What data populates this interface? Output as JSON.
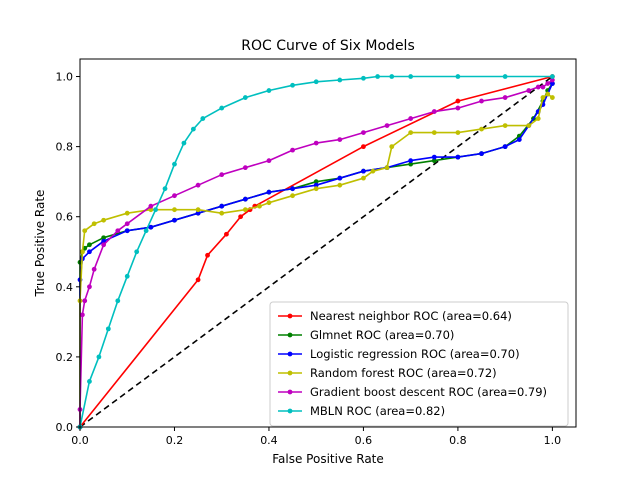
{
  "chart_data": {
    "type": "line",
    "title": "ROC Curve of Six Models",
    "xlabel": "False Positive Rate",
    "ylabel": "True Positive Rate",
    "xlim": [
      0.0,
      1.05
    ],
    "ylim": [
      0.0,
      1.05
    ],
    "xticks": [
      "0.0",
      "0.2",
      "0.4",
      "0.6",
      "0.8",
      "1.0"
    ],
    "yticks": [
      "0.0",
      "0.2",
      "0.4",
      "0.6",
      "0.8",
      "1.0"
    ],
    "grid": false,
    "legend_position": "lower-right",
    "reference_line": {
      "x": [
        0,
        1
      ],
      "y": [
        0,
        1
      ],
      "color": "#000000",
      "style": "dashed"
    },
    "series": [
      {
        "name": "Nearest neighbor ROC (area=0.64)",
        "color": "#ff0000",
        "x": [
          0,
          0.25,
          0.27,
          0.31,
          0.34,
          0.36,
          0.37,
          0.6,
          0.8,
          1.0
        ],
        "y": [
          0,
          0.42,
          0.49,
          0.55,
          0.6,
          0.62,
          0.63,
          0.8,
          0.93,
          1.0
        ]
      },
      {
        "name": "Glmnet ROC (area=0.70)",
        "color": "#008000",
        "x": [
          0,
          0.0,
          0.005,
          0.01,
          0.02,
          0.05,
          0.1,
          0.15,
          0.2,
          0.25,
          0.3,
          0.35,
          0.4,
          0.45,
          0.5,
          0.55,
          0.6,
          0.65,
          0.7,
          0.75,
          0.8,
          0.85,
          0.9,
          0.93,
          0.96,
          0.98,
          0.99,
          1.0
        ],
        "y": [
          0,
          0.47,
          0.5,
          0.51,
          0.52,
          0.54,
          0.56,
          0.57,
          0.59,
          0.61,
          0.63,
          0.65,
          0.67,
          0.68,
          0.7,
          0.71,
          0.73,
          0.74,
          0.75,
          0.76,
          0.77,
          0.78,
          0.8,
          0.83,
          0.88,
          0.93,
          0.96,
          0.98
        ]
      },
      {
        "name": "Logistic regression ROC (area=0.70)",
        "color": "#0000ff",
        "x": [
          0,
          0.0,
          0.005,
          0.02,
          0.05,
          0.1,
          0.15,
          0.2,
          0.25,
          0.3,
          0.35,
          0.4,
          0.45,
          0.5,
          0.55,
          0.6,
          0.65,
          0.7,
          0.75,
          0.8,
          0.85,
          0.9,
          0.93,
          0.95,
          0.97,
          0.98,
          0.99,
          1.0
        ],
        "y": [
          0,
          0.42,
          0.48,
          0.5,
          0.53,
          0.56,
          0.57,
          0.59,
          0.61,
          0.63,
          0.65,
          0.67,
          0.68,
          0.69,
          0.71,
          0.73,
          0.74,
          0.76,
          0.77,
          0.77,
          0.78,
          0.8,
          0.82,
          0.86,
          0.9,
          0.92,
          0.95,
          0.98
        ]
      },
      {
        "name": "Random forest ROC (area=0.72)",
        "color": "#bfbf00",
        "x": [
          0,
          0.0,
          0.005,
          0.01,
          0.03,
          0.05,
          0.1,
          0.15,
          0.2,
          0.25,
          0.3,
          0.35,
          0.38,
          0.4,
          0.45,
          0.5,
          0.55,
          0.6,
          0.62,
          0.65,
          0.66,
          0.7,
          0.75,
          0.8,
          0.85,
          0.9,
          0.95,
          0.97,
          0.98,
          0.99,
          1.0
        ],
        "y": [
          0,
          0.36,
          0.5,
          0.56,
          0.58,
          0.59,
          0.61,
          0.62,
          0.62,
          0.62,
          0.61,
          0.62,
          0.63,
          0.64,
          0.66,
          0.68,
          0.69,
          0.71,
          0.73,
          0.74,
          0.8,
          0.84,
          0.84,
          0.84,
          0.85,
          0.86,
          0.86,
          0.88,
          0.94,
          0.95,
          0.94
        ]
      },
      {
        "name": "Gradient boost descent ROC (area=0.79)",
        "color": "#bf00bf",
        "x": [
          0,
          0.0,
          0.005,
          0.01,
          0.02,
          0.03,
          0.05,
          0.08,
          0.1,
          0.15,
          0.2,
          0.25,
          0.3,
          0.35,
          0.4,
          0.45,
          0.5,
          0.55,
          0.6,
          0.65,
          0.7,
          0.75,
          0.8,
          0.85,
          0.9,
          0.95,
          0.97,
          0.98,
          0.99,
          1.0
        ],
        "y": [
          0,
          0.05,
          0.32,
          0.36,
          0.4,
          0.45,
          0.52,
          0.56,
          0.58,
          0.63,
          0.66,
          0.69,
          0.72,
          0.74,
          0.76,
          0.79,
          0.81,
          0.82,
          0.84,
          0.86,
          0.88,
          0.9,
          0.91,
          0.93,
          0.94,
          0.96,
          0.97,
          0.97,
          0.98,
          0.99
        ]
      },
      {
        "name": "MBLN ROC (area=0.82)",
        "color": "#00bfbf",
        "x": [
          0,
          0.02,
          0.04,
          0.06,
          0.08,
          0.1,
          0.12,
          0.14,
          0.16,
          0.18,
          0.2,
          0.22,
          0.24,
          0.26,
          0.3,
          0.35,
          0.4,
          0.45,
          0.5,
          0.55,
          0.6,
          0.63,
          0.66,
          0.7,
          0.8,
          0.9,
          1.0
        ],
        "y": [
          0,
          0.13,
          0.2,
          0.28,
          0.36,
          0.43,
          0.5,
          0.56,
          0.62,
          0.68,
          0.75,
          0.81,
          0.85,
          0.88,
          0.91,
          0.94,
          0.96,
          0.975,
          0.985,
          0.99,
          0.995,
          1.0,
          1.0,
          1.0,
          1.0,
          1.0,
          1.0
        ]
      }
    ]
  }
}
